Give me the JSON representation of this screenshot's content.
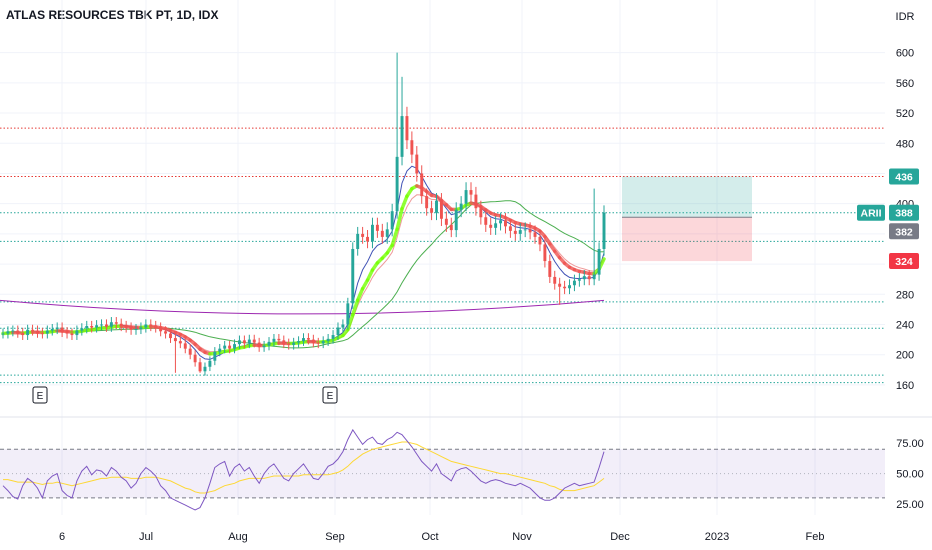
{
  "header": {
    "title": "ATLAS RESOURCES TBK PT, 1D, IDX"
  },
  "chart_data": {
    "type": "candlestick",
    "title": "ATLAS RESOURCES TBK PT, 1D, IDX",
    "currency_label": "IDR",
    "price_axis": {
      "ylim": [
        140,
        630
      ],
      "ticks": [
        "600",
        "560",
        "520",
        "480",
        "440",
        "400",
        "360",
        "320",
        "280",
        "240",
        "200",
        "160"
      ]
    },
    "time_axis": {
      "ticks": [
        "6",
        "Jul",
        "Aug",
        "Sep",
        "Oct",
        "Nov",
        "Dec",
        "2023",
        "Feb"
      ]
    },
    "horizontal_levels": [
      {
        "value": 500,
        "color": "#e53935",
        "style": "dotted"
      },
      {
        "value": 436,
        "color": "#e53935",
        "style": "dotted"
      },
      {
        "value": 388,
        "color": "#26a69a",
        "style": "dotted"
      },
      {
        "value": 350,
        "color": "#26a69a",
        "style": "dotted"
      },
      {
        "value": 270,
        "color": "#26a69a",
        "style": "dotted"
      },
      {
        "value": 235,
        "color": "#26a69a",
        "style": "dotted"
      },
      {
        "value": 173,
        "color": "#26a69a",
        "style": "dotted"
      },
      {
        "value": 163,
        "color": "#26a69a",
        "style": "dotted"
      }
    ],
    "position": {
      "target": 436,
      "entry": 382,
      "stop": 324
    },
    "price_badges": [
      {
        "label": "436",
        "color": "#26a69a"
      },
      {
        "label": "ARII",
        "color": "#26a69a"
      },
      {
        "label": "388",
        "color": "#26a69a"
      },
      {
        "label": "382",
        "color": "#787b86"
      },
      {
        "label": "324",
        "color": "#f23645"
      }
    ],
    "earnings_markers": [
      "E",
      "E"
    ],
    "close_series": [
      228,
      231,
      232,
      229,
      226,
      233,
      232,
      229,
      228,
      232,
      234,
      236,
      230,
      228,
      226,
      232,
      235,
      238,
      236,
      239,
      240,
      237,
      243,
      241,
      238,
      236,
      233,
      234,
      236,
      240,
      238,
      236,
      231,
      228,
      222,
      218,
      215,
      208,
      200,
      190,
      178,
      184,
      192,
      204,
      208,
      212,
      208,
      214,
      219,
      215,
      220,
      216,
      210,
      212,
      217,
      221,
      219,
      215,
      213,
      216,
      218,
      222,
      220,
      216,
      215,
      218,
      221,
      226,
      236,
      240,
      268,
      340,
      360,
      356,
      350,
      372,
      364,
      356,
      366,
      390,
      462,
      516,
      484,
      465,
      440,
      410,
      394,
      388,
      404,
      380,
      372,
      365,
      392,
      400,
      418,
      412,
      394,
      382,
      372,
      368,
      374,
      378,
      370,
      364,
      360,
      365,
      366,
      362,
      356,
      346,
      324,
      303,
      294,
      290,
      288,
      292,
      298,
      300,
      304,
      300,
      306,
      340,
      388
    ],
    "rsi": {
      "ylim": [
        20,
        90
      ],
      "ticks": [
        "75.00",
        "50.00",
        "25.00"
      ],
      "bands": [
        70,
        30
      ],
      "midline": 50,
      "values": [
        40,
        36,
        31,
        29,
        40,
        46,
        43,
        38,
        30,
        44,
        48,
        50,
        36,
        32,
        30,
        44,
        52,
        56,
        49,
        53,
        52,
        48,
        55,
        52,
        47,
        44,
        38,
        42,
        50,
        55,
        52,
        48,
        40,
        36,
        30,
        28,
        26,
        24,
        22,
        20,
        22,
        30,
        42,
        55,
        58,
        60,
        48,
        55,
        58,
        52,
        55,
        48,
        42,
        50,
        55,
        58,
        52,
        46,
        44,
        50,
        54,
        58,
        52,
        46,
        45,
        50,
        56,
        58,
        62,
        68,
        78,
        86,
        80,
        74,
        78,
        80,
        75,
        74,
        78,
        80,
        84,
        82,
        77,
        72,
        66,
        60,
        56,
        52,
        58,
        50,
        47,
        44,
        52,
        54,
        55,
        52,
        48,
        44,
        42,
        44,
        45,
        44,
        42,
        41,
        40,
        42,
        40,
        38,
        34,
        30,
        28,
        28,
        30,
        34,
        38,
        40,
        42,
        40,
        41,
        42,
        43,
        55,
        68
      ],
      "signal": [
        45,
        45,
        44,
        43,
        43,
        43,
        43,
        42,
        41,
        42,
        42,
        43,
        42,
        41,
        40,
        41,
        42,
        43,
        44,
        45,
        46,
        46,
        47,
        47,
        47,
        47,
        46,
        46,
        46,
        47,
        47,
        47,
        46,
        45,
        44,
        42,
        40,
        38,
        37,
        35,
        34,
        34,
        35,
        36,
        38,
        40,
        41,
        42,
        44,
        45,
        46,
        46,
        46,
        46,
        47,
        48,
        48,
        48,
        48,
        48,
        48,
        49,
        49,
        49,
        49,
        49,
        49,
        50,
        51,
        53,
        56,
        60,
        63,
        66,
        68,
        70,
        71,
        72,
        73,
        74,
        75,
        76,
        76,
        75,
        74,
        72,
        70,
        68,
        66,
        64,
        62,
        60,
        59,
        58,
        57,
        56,
        55,
        54,
        53,
        52,
        51,
        50,
        50,
        49,
        48,
        47,
        46,
        45,
        44,
        43,
        42,
        40,
        39,
        37,
        36,
        36,
        36,
        37,
        38,
        39,
        40,
        43,
        46
      ]
    }
  }
}
